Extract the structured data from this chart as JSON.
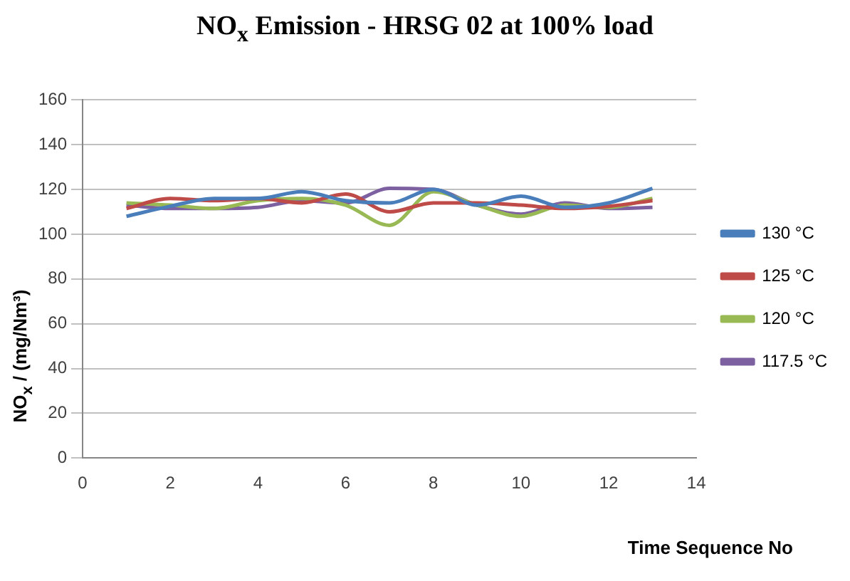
{
  "chart_data": {
    "type": "line",
    "title": "NO$_{x}$ Emission - HRSG 02 at 100% load",
    "xlabel": "Time Sequence No",
    "ylabel": "NO$_{x}$ / (mg/Nm³)",
    "x": [
      1,
      2,
      3,
      4,
      5,
      6,
      7,
      8,
      9,
      10,
      11,
      12,
      13
    ],
    "series": [
      {
        "name": "130 °C",
        "color": "#4a7ebb",
        "values": [
          108,
          112.5,
          116,
          116,
          119,
          115,
          114,
          120,
          113,
          117,
          112,
          114,
          120.5
        ]
      },
      {
        "name": "125 °C",
        "color": "#be4b48",
        "values": [
          111.5,
          116,
          115,
          116,
          114,
          118,
          110,
          114,
          114,
          113,
          111.5,
          112.5,
          115
        ]
      },
      {
        "name": "120 °C",
        "color": "#98b954",
        "values": [
          114,
          113,
          111.5,
          115,
          116,
          113,
          104,
          119,
          113,
          108,
          113,
          112,
          116
        ]
      },
      {
        "name": "117.5 °C",
        "color": "#7d60a0",
        "values": [
          113,
          111.5,
          111.5,
          112,
          115,
          114,
          120.5,
          120,
          113,
          109,
          114,
          111.5,
          112
        ]
      }
    ],
    "xlim": [
      0,
      14
    ],
    "xticks": [
      0,
      2,
      4,
      6,
      8,
      10,
      12,
      14
    ],
    "ylim": [
      0,
      160
    ],
    "yticks": [
      0,
      20,
      40,
      60,
      80,
      100,
      120,
      140,
      160
    ],
    "grid": "y",
    "legend": "right",
    "marker": "none",
    "line_style": "solid"
  }
}
